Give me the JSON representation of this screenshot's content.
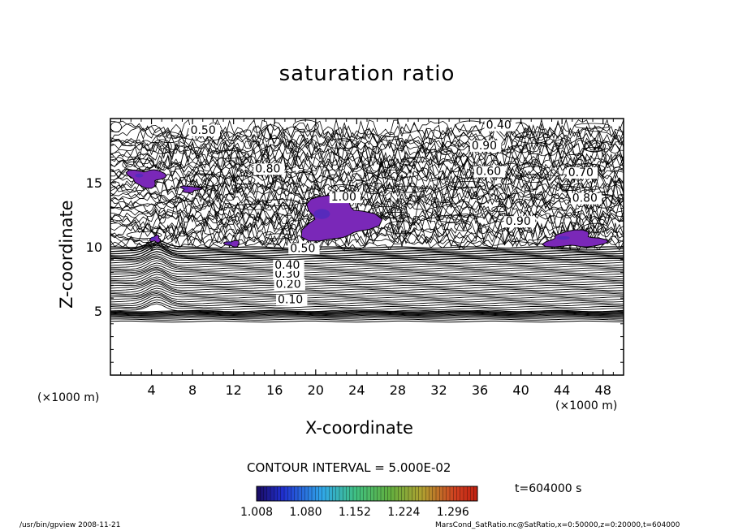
{
  "chart_data": {
    "type": "contour",
    "title": "saturation ratio",
    "xlabel": "X-coordinate",
    "ylabel": "Z-coordinate",
    "x_unit": "(×1000 m)",
    "y_unit": "(×1000 m)",
    "xlim": [
      0,
      50
    ],
    "ylim": [
      0,
      20
    ],
    "x_ticks": [
      "4",
      "8",
      "12",
      "16",
      "20",
      "24",
      "28",
      "32",
      "36",
      "40",
      "44",
      "48"
    ],
    "y_ticks": [
      "5",
      "10",
      "15"
    ],
    "contour_interval_text": "CONTOUR INTERVAL = 5.000E-02",
    "contour_labels": [
      "0.10",
      "0.20",
      "0.30",
      "0.40",
      "0.50",
      "0.60",
      "0.70",
      "0.80",
      "0.90",
      "1.00"
    ],
    "supersaturated_regions": [
      {
        "x": [
          1.5,
          5.5
        ],
        "z": [
          14.6,
          16.2
        ]
      },
      {
        "x": [
          6.7,
          8.8
        ],
        "z": [
          14.2,
          14.8
        ]
      },
      {
        "x": [
          18.0,
          26.0
        ],
        "z": [
          10.1,
          14.2
        ]
      },
      {
        "x": [
          42.0,
          48.5
        ],
        "z": [
          9.8,
          11.3
        ]
      },
      {
        "x": [
          3.8,
          5.0
        ],
        "z": [
          10.3,
          10.9
        ]
      },
      {
        "x": [
          11.0,
          12.8
        ],
        "z": [
          10.0,
          10.5
        ]
      }
    ],
    "colorbar": {
      "ticks": [
        "1.008",
        "1.080",
        "1.152",
        "1.224",
        "1.296"
      ],
      "range": [
        1.008,
        1.332
      ]
    },
    "time_text": "t=604000 s",
    "grid": false,
    "legend": "colorbar bottom"
  },
  "footer": {
    "left": "/usr/bin/gpview   2008-11-21",
    "right": "MarsCond_SatRatio.nc@SatRatio,x=0:50000,z=0:20000,t=604000"
  },
  "colors": {
    "fill": "#7a28b8",
    "fill_deep": "#3a2cc0",
    "line": "#000000"
  }
}
